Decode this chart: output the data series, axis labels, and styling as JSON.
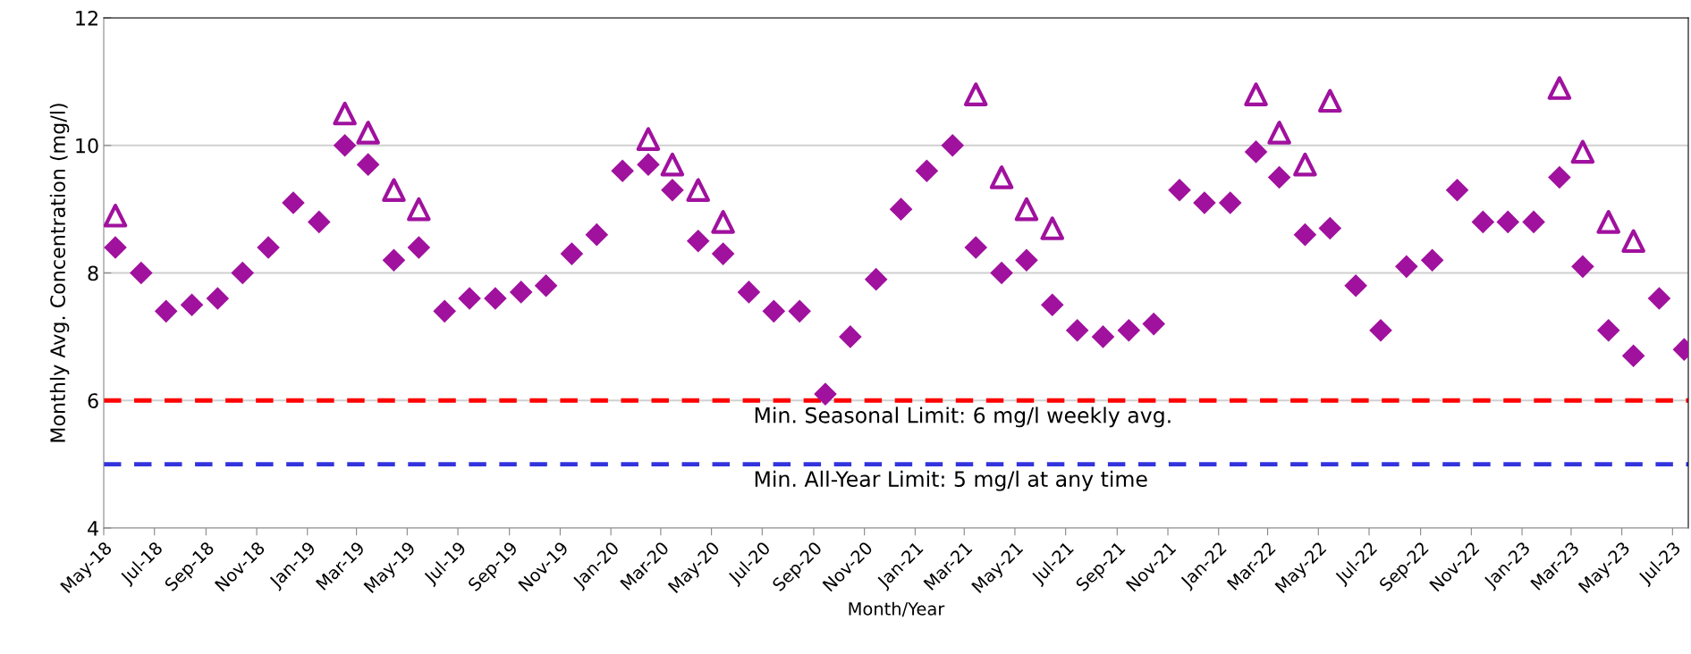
{
  "chart_data": {
    "type": "scatter",
    "xlabel": "Month/Year",
    "ylabel": "Monthly Avg. Concentration (mg/l)",
    "x": [
      "2018-05-15",
      "2018-06-15",
      "2018-07-15",
      "2018-08-15",
      "2018-09-15",
      "2018-10-15",
      "2018-11-15",
      "2018-12-15",
      "2019-01-15",
      "2019-02-15",
      "2019-03-15",
      "2019-04-15",
      "2019-05-15",
      "2019-06-15",
      "2019-07-15",
      "2019-08-15",
      "2019-09-15",
      "2019-10-15",
      "2019-11-15",
      "2019-12-15",
      "2020-01-15",
      "2020-02-15",
      "2020-03-15",
      "2020-04-15",
      "2020-05-15",
      "2020-06-15",
      "2020-07-15",
      "2020-08-15",
      "2020-09-15",
      "2020-10-15",
      "2020-11-15",
      "2020-12-15",
      "2021-01-15",
      "2021-02-15",
      "2021-03-15",
      "2021-04-15",
      "2021-05-15",
      "2021-06-15",
      "2021-07-15",
      "2021-08-15",
      "2021-09-15",
      "2021-10-15",
      "2021-11-15",
      "2021-12-15",
      "2022-01-15",
      "2022-02-15",
      "2022-03-15",
      "2022-04-15",
      "2022-05-15",
      "2022-06-15",
      "2022-07-15",
      "2022-08-15",
      "2022-09-15",
      "2022-10-15",
      "2022-11-15",
      "2022-12-15",
      "2023-01-15",
      "2023-02-15",
      "2023-03-15",
      "2023-04-15",
      "2023-05-15",
      "2023-06-15",
      "2023-07-15"
    ],
    "series": [
      {
        "color": "#a0119e",
        "marker": "diamond",
        "values": [
          8.4,
          8.0,
          7.4,
          7.5,
          7.6,
          8.0,
          8.4,
          9.1,
          8.8,
          10.0,
          9.7,
          8.2,
          8.4,
          7.4,
          7.6,
          7.6,
          7.7,
          7.8,
          8.3,
          8.6,
          9.6,
          9.7,
          9.3,
          8.5,
          8.3,
          7.7,
          7.4,
          7.4,
          6.1,
          7.0,
          7.9,
          9.0,
          9.6,
          10.0,
          8.4,
          8.0,
          8.2,
          7.5,
          7.1,
          7.0,
          7.1,
          7.2,
          9.3,
          9.1,
          9.1,
          9.9,
          9.5,
          8.6,
          8.7,
          7.8,
          7.1,
          8.1,
          8.2,
          9.3,
          8.8,
          8.8,
          8.8,
          9.5,
          8.1,
          7.1,
          6.7,
          7.6,
          6.8
        ]
      },
      {
        "color": "#a0119e",
        "marker": "triangle",
        "values": [
          8.9,
          null,
          null,
          null,
          null,
          null,
          null,
          null,
          null,
          10.5,
          10.2,
          9.3,
          9.0,
          null,
          null,
          null,
          null,
          null,
          null,
          null,
          null,
          10.1,
          9.7,
          9.3,
          8.8,
          null,
          null,
          null,
          null,
          null,
          null,
          null,
          null,
          null,
          10.8,
          9.5,
          9.0,
          8.7,
          null,
          null,
          null,
          null,
          null,
          null,
          null,
          10.8,
          10.2,
          9.7,
          10.7,
          null,
          null,
          null,
          null,
          null,
          null,
          null,
          null,
          10.9,
          9.9,
          8.8,
          8.5,
          null,
          null
        ]
      }
    ],
    "xlim": [
      "2018-05-01",
      "2023-07-20"
    ],
    "xticks": [
      {
        "value": "2018-05-01",
        "label": "May-18"
      },
      {
        "value": "2018-07-01",
        "label": "Jul-18"
      },
      {
        "value": "2018-09-01",
        "label": "Sep-18"
      },
      {
        "value": "2018-11-01",
        "label": "Nov-18"
      },
      {
        "value": "2019-01-01",
        "label": "Jan-19"
      },
      {
        "value": "2019-03-01",
        "label": "Mar-19"
      },
      {
        "value": "2019-05-01",
        "label": "May-19"
      },
      {
        "value": "2019-07-01",
        "label": "Jul-19"
      },
      {
        "value": "2019-09-01",
        "label": "Sep-19"
      },
      {
        "value": "2019-11-01",
        "label": "Nov-19"
      },
      {
        "value": "2020-01-01",
        "label": "Jan-20"
      },
      {
        "value": "2020-03-01",
        "label": "Mar-20"
      },
      {
        "value": "2020-05-01",
        "label": "May-20"
      },
      {
        "value": "2020-07-01",
        "label": "Jul-20"
      },
      {
        "value": "2020-09-01",
        "label": "Sep-20"
      },
      {
        "value": "2020-11-01",
        "label": "Nov-20"
      },
      {
        "value": "2021-01-01",
        "label": "Jan-21"
      },
      {
        "value": "2021-03-01",
        "label": "Mar-21"
      },
      {
        "value": "2021-05-01",
        "label": "May-21"
      },
      {
        "value": "2021-07-01",
        "label": "Jul-21"
      },
      {
        "value": "2021-09-01",
        "label": "Sep-21"
      },
      {
        "value": "2021-11-01",
        "label": "Nov-21"
      },
      {
        "value": "2022-01-01",
        "label": "Jan-22"
      },
      {
        "value": "2022-03-01",
        "label": "Mar-22"
      },
      {
        "value": "2022-05-01",
        "label": "May-22"
      },
      {
        "value": "2022-07-01",
        "label": "Jul-22"
      },
      {
        "value": "2022-09-01",
        "label": "Sep-22"
      },
      {
        "value": "2022-11-01",
        "label": "Nov-22"
      },
      {
        "value": "2023-01-01",
        "label": "Jan-23"
      },
      {
        "value": "2023-03-01",
        "label": "Mar-23"
      },
      {
        "value": "2023-05-01",
        "label": "May-23"
      },
      {
        "value": "2023-07-01",
        "label": "Jul-23"
      }
    ],
    "ylim": [
      4,
      12
    ],
    "yticks": [
      4,
      6,
      8,
      10,
      12
    ],
    "grid": "y",
    "legend": false,
    "ref_lines": [
      {
        "axis": "y",
        "value": 6,
        "label": "Min. Seasonal Limit: 6 mg/l weekly avg.",
        "color": "#ff0000",
        "line_style": "dashed"
      },
      {
        "axis": "y",
        "value": 5,
        "label": "Min. All-Year Limit: 5 mg/l at any time",
        "color": "#3333dd",
        "line_style": "dashed"
      }
    ]
  }
}
